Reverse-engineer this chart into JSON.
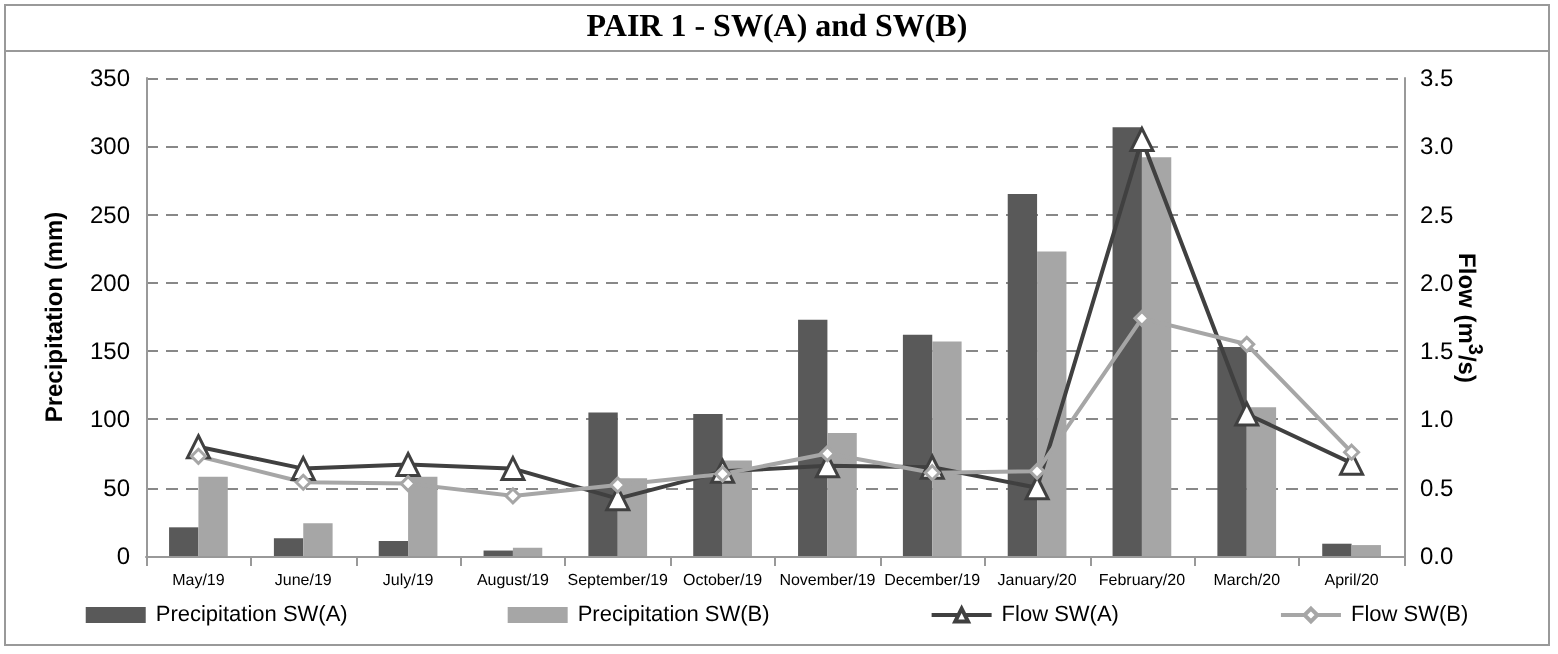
{
  "chart_data": {
    "type": "bar",
    "title": "PAIR 1 - SW(A) and SW(B)",
    "ylabel": "Precipitation (mm)",
    "y2label": "Flow (m$^{3}$/s)",
    "categories": [
      "May/19",
      "June/19",
      "July/19",
      "August/19",
      "September/19",
      "October/19",
      "November/19",
      "December/19",
      "January/20",
      "February/20",
      "March/20",
      "April/20"
    ],
    "series": [
      {
        "name": "Precipitation SW(A)",
        "color": "#595959",
        "values": [
          21,
          13,
          11,
          4,
          105,
          104,
          173,
          162,
          265,
          314,
          153,
          9
        ]
      },
      {
        "name": "Precipitation SW(B)",
        "color": "#a6a6a6",
        "values": [
          58,
          24,
          58,
          6,
          57,
          70,
          90,
          157,
          223,
          292,
          109,
          8
        ]
      },
      {
        "name": "Flow SW(A)",
        "type": "line",
        "axis": "y2",
        "marker": "triangle",
        "color": "#404040",
        "values": [
          0.8,
          0.64,
          0.67,
          0.64,
          0.42,
          0.62,
          0.66,
          0.65,
          0.5,
          3.05,
          1.04,
          0.68
        ]
      },
      {
        "name": "Flow SW(B)",
        "type": "line",
        "axis": "y2",
        "marker": "diamond",
        "color": "#a6a6a6",
        "values": [
          0.73,
          0.54,
          0.53,
          0.44,
          0.52,
          0.6,
          0.75,
          0.61,
          0.62,
          1.74,
          1.55,
          0.76
        ]
      }
    ],
    "ylim": [
      0,
      350
    ],
    "yticks": [
      0,
      50,
      100,
      150,
      200,
      250,
      300,
      350
    ],
    "y2lim": [
      0,
      3.5
    ],
    "y2ticks": [
      {
        "value": 0,
        "label": "0.0"
      },
      {
        "value": 0.5,
        "label": "0.5"
      },
      {
        "value": 1,
        "label": "1.0"
      },
      {
        "value": 1.5,
        "label": "1.5"
      },
      {
        "value": 2,
        "label": "2.0"
      },
      {
        "value": 2.5,
        "label": "2.5"
      },
      {
        "value": 3,
        "label": "3.0"
      },
      {
        "value": 3.5,
        "label": "3.5"
      }
    ],
    "grid": "y",
    "legend": "bottom"
  }
}
